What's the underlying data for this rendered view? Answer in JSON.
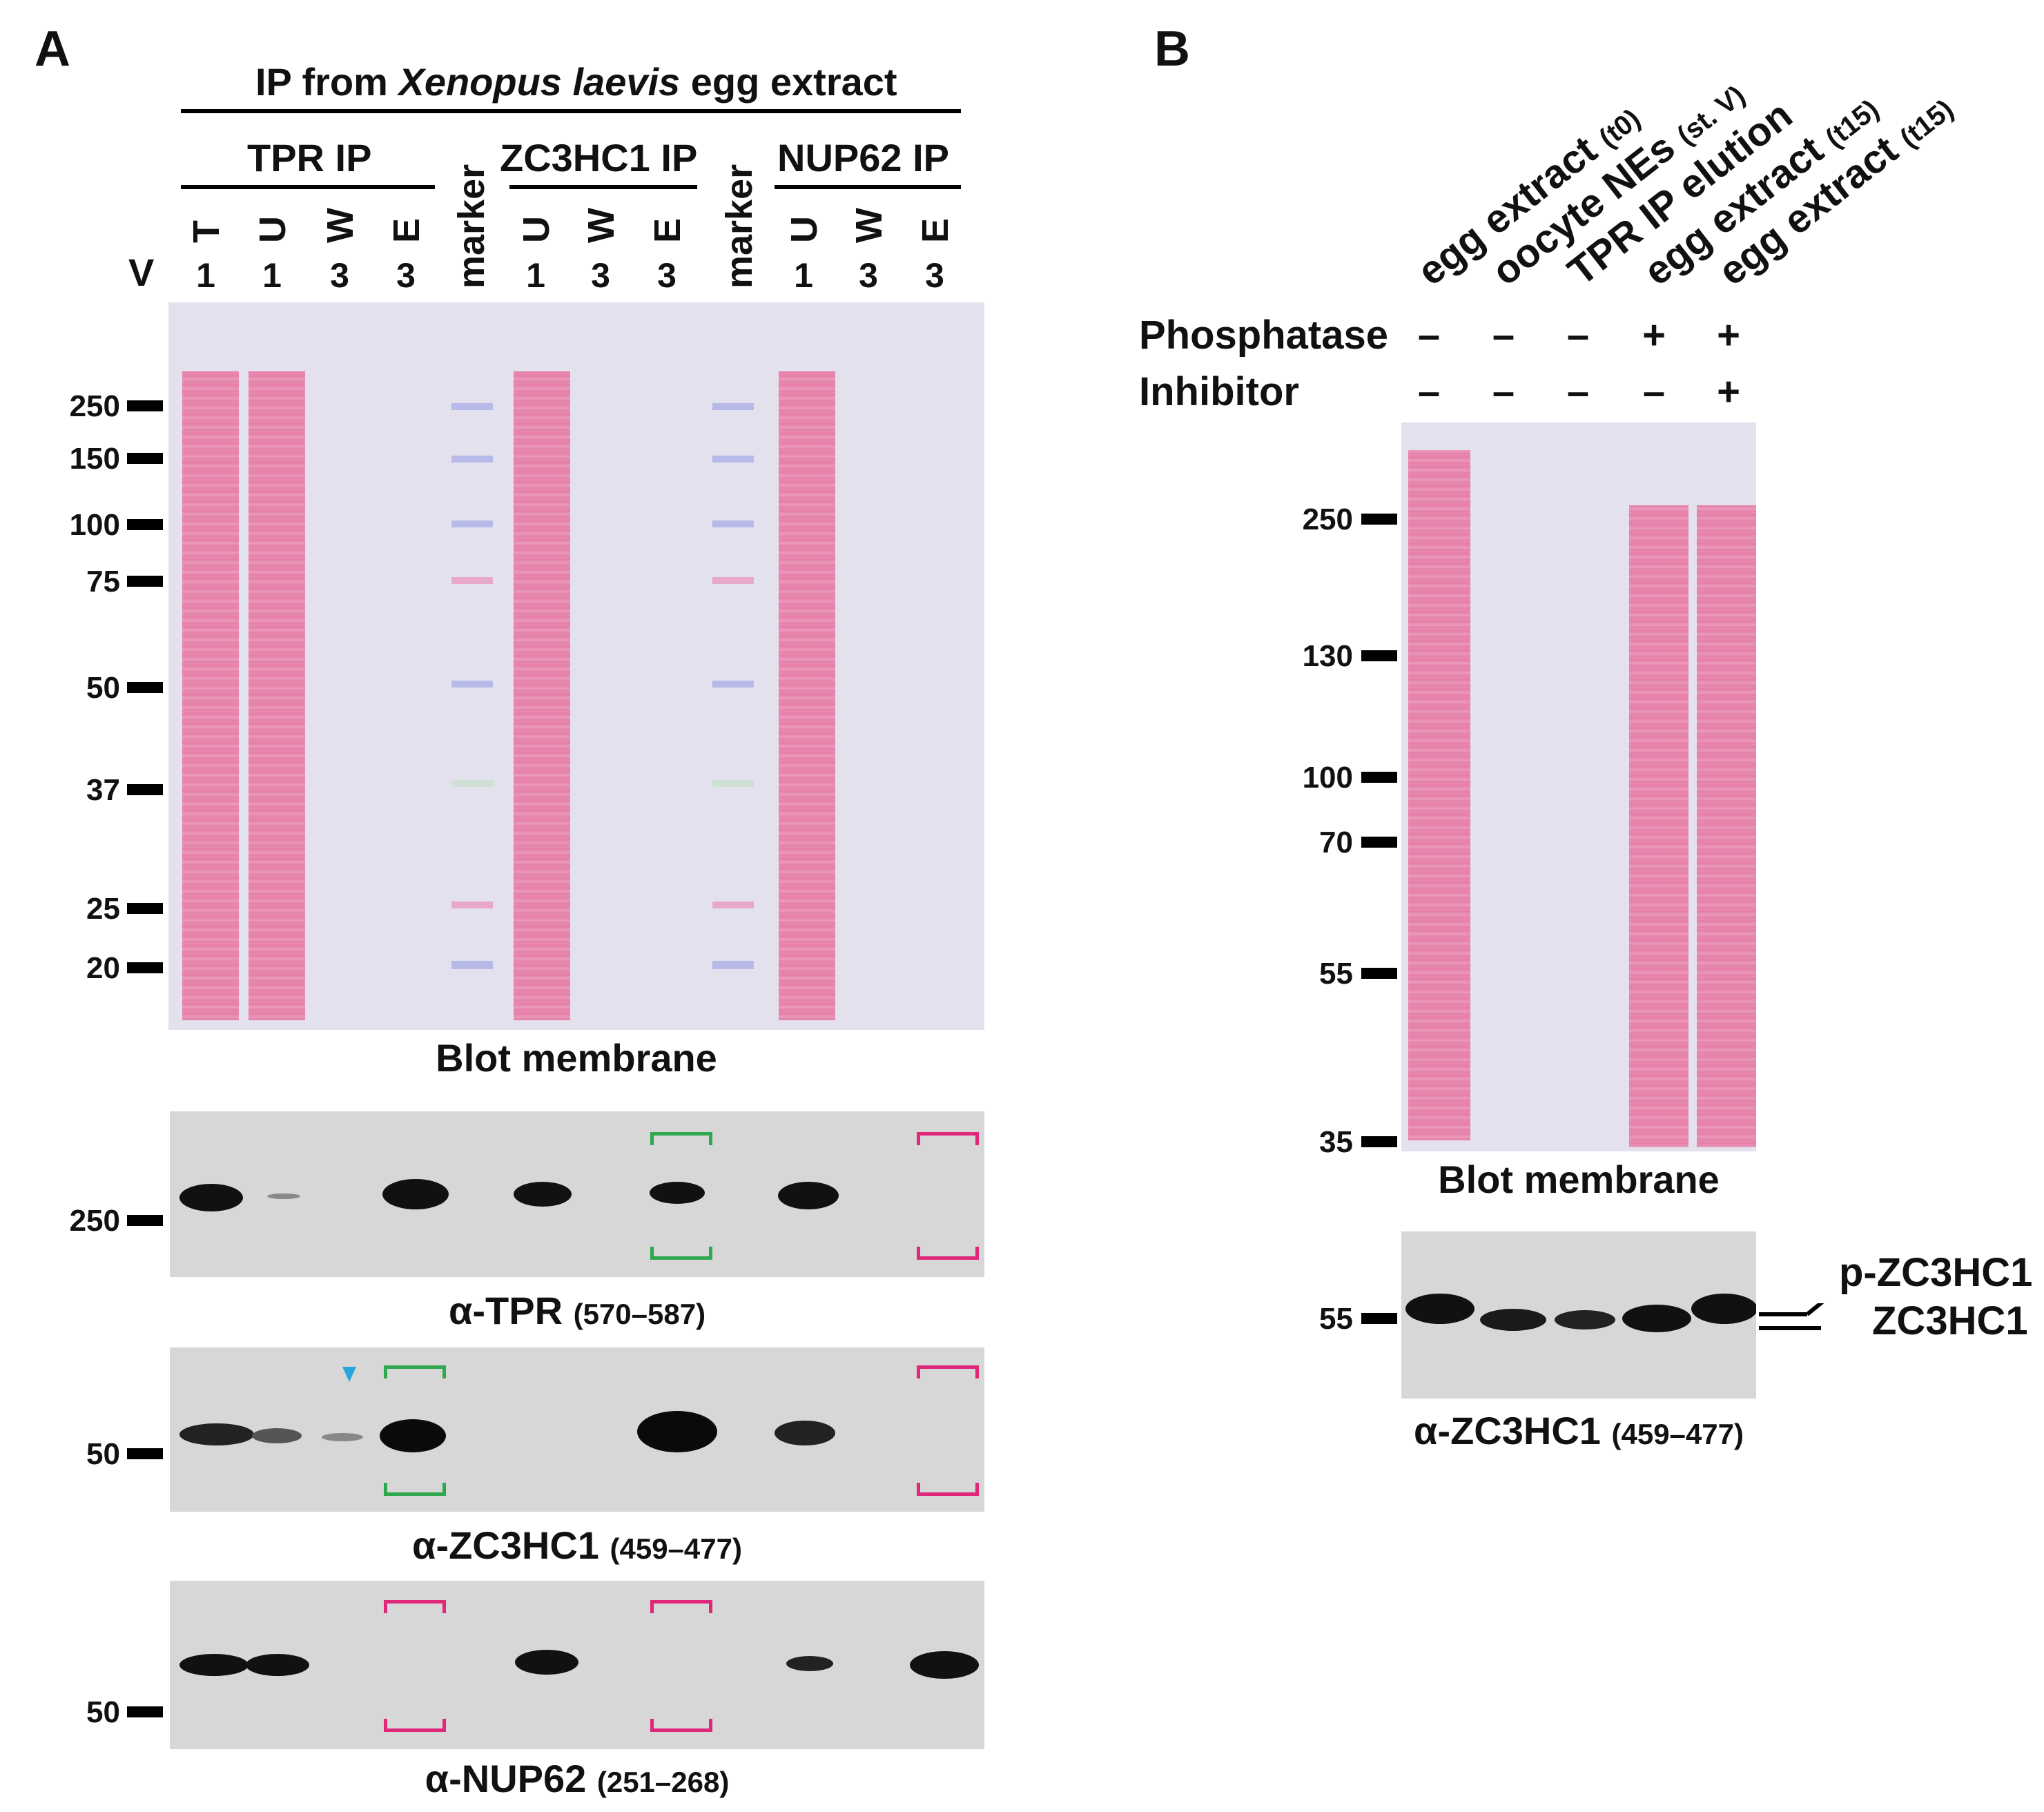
{
  "panelA": {
    "letter": "A",
    "header": {
      "prefix": "IP from ",
      "species": "Xenopus laevis",
      "suffix": " egg extract"
    },
    "groups": [
      "TPR IP",
      "ZC3HC1 IP",
      "NUP62 IP"
    ],
    "volume_label": "V",
    "lanes": [
      {
        "label": "T",
        "vol": "1"
      },
      {
        "label": "U",
        "vol": "1"
      },
      {
        "label": "W",
        "vol": "3"
      },
      {
        "label": "E",
        "vol": "3"
      },
      {
        "label": "marker",
        "vol": ""
      },
      {
        "label": "U",
        "vol": "1"
      },
      {
        "label": "W",
        "vol": "3"
      },
      {
        "label": "E",
        "vol": "3"
      },
      {
        "label": "marker",
        "vol": ""
      },
      {
        "label": "U",
        "vol": "1"
      },
      {
        "label": "W",
        "vol": "3"
      },
      {
        "label": "E",
        "vol": "3"
      }
    ],
    "membrane_markers": [
      "250",
      "150",
      "100",
      "75",
      "50",
      "37",
      "25",
      "20"
    ],
    "membrane_caption": "Blot membrane",
    "blots": [
      {
        "marker": "250",
        "caption": "α-TPR",
        "range": "(570–587)"
      },
      {
        "marker": "50",
        "caption": "α-ZC3HC1",
        "range": "(459–477)"
      },
      {
        "marker": "50",
        "caption": "α-NUP62",
        "range": "(251–268)"
      }
    ]
  },
  "panelB": {
    "letter": "B",
    "lanes": [
      {
        "label": "egg extract",
        "sub": "(t0)"
      },
      {
        "label": "oocyte NEs",
        "sub": "(st. V)"
      },
      {
        "label": "TPR IP elution",
        "sub": ""
      },
      {
        "label": "egg extract",
        "sub": "(t15)"
      },
      {
        "label": "egg extract",
        "sub": "(t15)"
      }
    ],
    "phosphatase_label": "Phosphatase",
    "inhibitor_label": "Inhibitor",
    "phosphatase": [
      "–",
      "–",
      "–",
      "+",
      "+"
    ],
    "inhibitor": [
      "–",
      "–",
      "–",
      "–",
      "+"
    ],
    "membrane_markers": [
      "250",
      "130",
      "100",
      "70",
      "55",
      "35"
    ],
    "membrane_caption": "Blot membrane",
    "blot_marker": "55",
    "blot_caption": "α-ZC3HC1",
    "blot_range": "(459–477)",
    "band_labels": [
      "p-ZC3HC1",
      "ZC3HC1"
    ]
  }
}
